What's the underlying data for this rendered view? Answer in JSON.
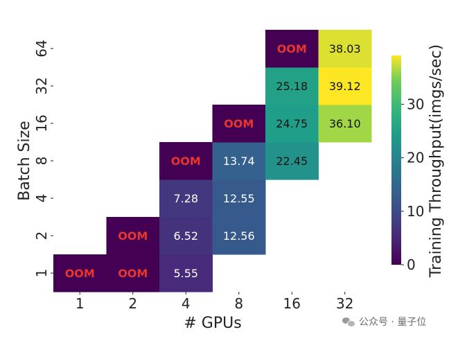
{
  "chart_data": {
    "type": "heatmap",
    "xlabel": "# GPUs",
    "ylabel": "Batch Size",
    "x_categories": [
      "1",
      "2",
      "4",
      "8",
      "16",
      "32"
    ],
    "y_categories": [
      "1",
      "2",
      "4",
      "8",
      "16",
      "32",
      "64"
    ],
    "colorbar": {
      "label": "Training Throughput(imgs/sec)",
      "range": [
        0,
        39.12
      ],
      "ticks": [
        "0",
        "10",
        "20",
        "30"
      ]
    },
    "cells": [
      {
        "gpus": "1",
        "batch": "1",
        "label": "OOM"
      },
      {
        "gpus": "2",
        "batch": "1",
        "label": "OOM"
      },
      {
        "gpus": "4",
        "batch": "1",
        "value": 5.55,
        "label": "5.55"
      },
      {
        "gpus": "2",
        "batch": "2",
        "label": "OOM"
      },
      {
        "gpus": "4",
        "batch": "2",
        "value": 6.52,
        "label": "6.52"
      },
      {
        "gpus": "8",
        "batch": "2",
        "value": 12.56,
        "label": "12.56"
      },
      {
        "gpus": "4",
        "batch": "4",
        "value": 7.28,
        "label": "7.28"
      },
      {
        "gpus": "8",
        "batch": "4",
        "value": 12.55,
        "label": "12.55"
      },
      {
        "gpus": "4",
        "batch": "8",
        "label": "OOM"
      },
      {
        "gpus": "8",
        "batch": "8",
        "value": 13.74,
        "label": "13.74"
      },
      {
        "gpus": "16",
        "batch": "8",
        "value": 22.45,
        "label": "22.45"
      },
      {
        "gpus": "8",
        "batch": "16",
        "label": "OOM"
      },
      {
        "gpus": "16",
        "batch": "16",
        "value": 24.75,
        "label": "24.75"
      },
      {
        "gpus": "32",
        "batch": "16",
        "value": 36.1,
        "label": "36.10"
      },
      {
        "gpus": "16",
        "batch": "32",
        "value": 25.18,
        "label": "25.18"
      },
      {
        "gpus": "32",
        "batch": "32",
        "value": 39.12,
        "label": "39.12"
      },
      {
        "gpus": "16",
        "batch": "64",
        "label": "OOM"
      },
      {
        "gpus": "32",
        "batch": "64",
        "value": 38.03,
        "label": "38.03"
      }
    ],
    "oom_color": "#e8362f"
  },
  "watermark": {
    "text": "公众号 · 量子位"
  }
}
